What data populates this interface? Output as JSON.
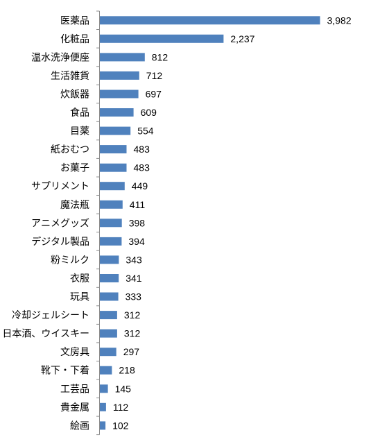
{
  "chart_data": {
    "type": "bar",
    "orientation": "horizontal",
    "title": "",
    "xlabel": "",
    "ylabel": "",
    "categories": [
      "医薬品",
      "化粧品",
      "温水洗浄便座",
      "生活雑貨",
      "炊飯器",
      "食品",
      "目薬",
      "紙おむつ",
      "お菓子",
      "サプリメント",
      "魔法瓶",
      "アニメグッズ",
      "デジタル製品",
      "粉ミルク",
      "衣服",
      "玩具",
      "冷却ジェルシート",
      "日本酒、ウイスキー",
      "文房具",
      "靴下・下着",
      "工芸品",
      "貴金属",
      "絵画"
    ],
    "values": [
      3982,
      2237,
      812,
      712,
      697,
      609,
      554,
      483,
      483,
      449,
      411,
      398,
      394,
      343,
      341,
      333,
      312,
      312,
      297,
      218,
      145,
      112,
      102
    ],
    "value_labels": [
      "3,982",
      "2,237",
      "812",
      "712",
      "697",
      "609",
      "554",
      "483",
      "483",
      "449",
      "411",
      "398",
      "394",
      "343",
      "341",
      "333",
      "312",
      "312",
      "297",
      "218",
      "145",
      "112",
      "102"
    ],
    "xlim": [
      0,
      4200
    ],
    "grid": false,
    "legend": "none",
    "bar_color": "#4f81bd",
    "axis_color": "#8c8c8c"
  }
}
